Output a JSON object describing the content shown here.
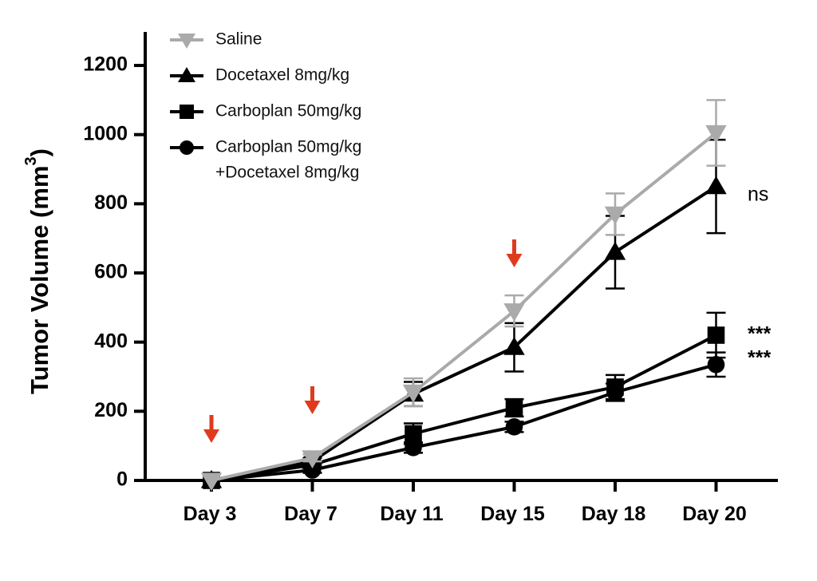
{
  "chart_data": {
    "type": "line",
    "ylabel": "Tumor Volume (mm",
    "ylabel_superscript": "3",
    "ylabel_close": ")",
    "ylim": [
      0,
      1200
    ],
    "yticks": [
      0,
      200,
      400,
      600,
      800,
      1000,
      1200
    ],
    "categories": [
      "Day 3",
      "Day 7",
      "Day 11",
      "Day 15",
      "Day 18",
      "Day 20"
    ],
    "series": [
      {
        "name": "Saline",
        "color": "#aaaaaa",
        "marker": "triangle-down",
        "values": [
          0,
          65,
          255,
          490,
          770,
          1005
        ],
        "errors": [
          5,
          10,
          40,
          45,
          60,
          95
        ]
      },
      {
        "name": "Docetaxel 8mg/kg",
        "color": "#000000",
        "marker": "triangle-up",
        "values": [
          0,
          55,
          250,
          385,
          660,
          850
        ],
        "errors": [
          5,
          10,
          35,
          70,
          105,
          135
        ]
      },
      {
        "name": "Carboplan 50mg/kg",
        "color": "#000000",
        "marker": "square",
        "values": [
          0,
          45,
          135,
          210,
          270,
          420
        ],
        "errors": [
          5,
          8,
          30,
          25,
          35,
          65
        ]
      },
      {
        "name": "Carboplan 50mg/kg",
        "name_line2": "+Docetaxel 8mg/kg",
        "color": "#000000",
        "marker": "circle",
        "values": [
          0,
          30,
          95,
          155,
          255,
          335
        ],
        "errors": [
          5,
          8,
          15,
          15,
          25,
          35
        ]
      }
    ],
    "dose_arrows": [
      "Day 3",
      "Day 7",
      "Day 15"
    ],
    "arrow_color": "#e03a1e",
    "annotations": [
      {
        "text": "ns",
        "series": 1
      },
      {
        "text": "***",
        "series": 2
      },
      {
        "text": "***",
        "series": 3
      }
    ],
    "legend_position": "top-left",
    "grid": false
  }
}
